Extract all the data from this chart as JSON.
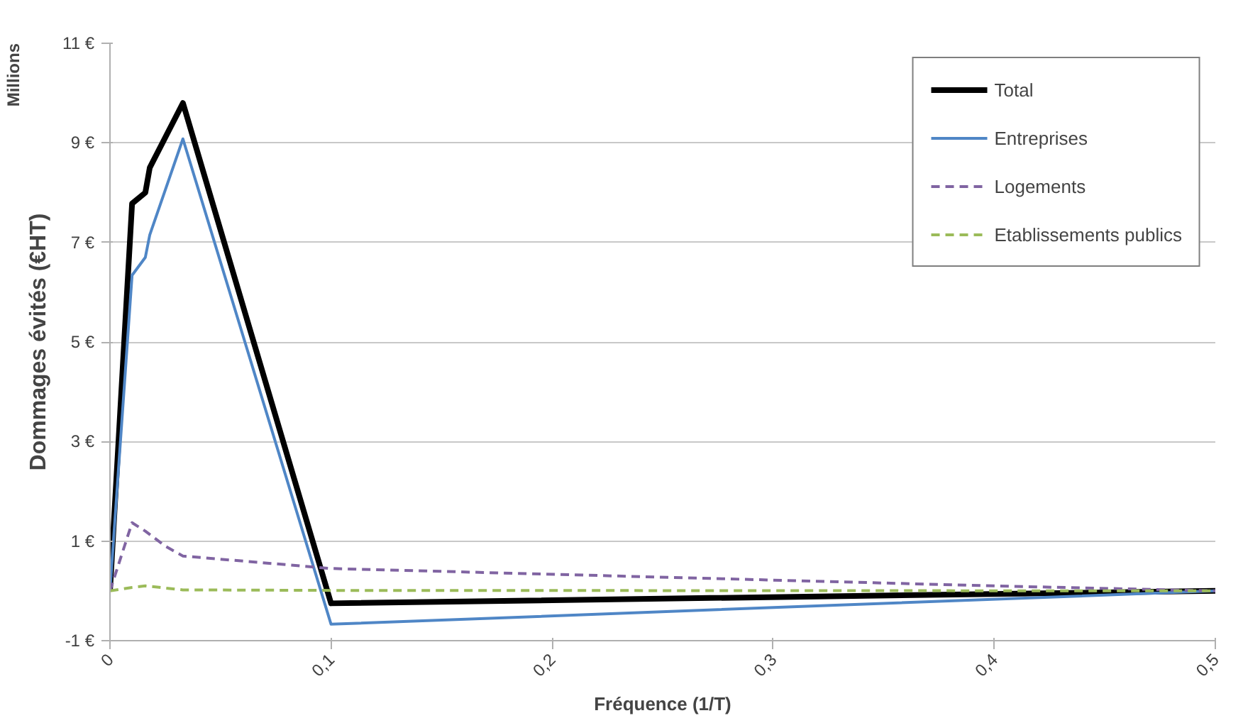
{
  "chart_data": {
    "type": "line",
    "xlabel": "Fréquence (1/T)",
    "ylabel": "Dommages évités (€HT)",
    "annotations": [
      "Millions"
    ],
    "xlim": [
      0,
      0.5
    ],
    "ylim": [
      -1,
      11
    ],
    "xticks": [
      0,
      {
        "value": 0.1,
        "label": "0,1"
      },
      {
        "value": 0.2,
        "label": "0,2"
      },
      {
        "value": 0.3,
        "label": "0,3"
      },
      {
        "value": 0.4,
        "label": "0,4"
      },
      {
        "value": 0.5,
        "label": "0,5"
      }
    ],
    "yticks": [
      {
        "value": -1,
        "label": "-1 €"
      },
      {
        "value": 1,
        "label": "1 €"
      },
      {
        "value": 3,
        "label": "3 €"
      },
      {
        "value": 5,
        "label": "5 €"
      },
      {
        "value": 7,
        "label": "7 €"
      },
      {
        "value": 9,
        "label": "9 €"
      },
      {
        "value": 11,
        "label": "11 €"
      }
    ],
    "grid": "y",
    "legend": "top right",
    "marker": "none",
    "series": [
      {
        "name": "Total",
        "color": "#000000",
        "line_style": "solid",
        "x": [
          0,
          0.01,
          0.016,
          0.018,
          0.033,
          0.1,
          0.5
        ],
        "values": [
          0,
          7.78,
          8.0,
          8.5,
          9.8,
          -0.25,
          0
        ]
      },
      {
        "name": "Entreprises",
        "color": "#4f86c6",
        "line_style": "solid",
        "x": [
          0,
          0.01,
          0.016,
          0.018,
          0.033,
          0.1,
          0.5
        ],
        "values": [
          0,
          6.34,
          6.7,
          7.15,
          9.08,
          -0.67,
          0
        ]
      },
      {
        "name": "Logements",
        "color": "#8064a2",
        "line_style": "dashed",
        "x": [
          0,
          0.01,
          0.016,
          0.025,
          0.033,
          0.1,
          0.4,
          0.5
        ],
        "values": [
          0,
          1.37,
          1.2,
          0.9,
          0.7,
          0.45,
          0.1,
          0
        ]
      },
      {
        "name": "Etablissements publics",
        "color": "#9bbb59",
        "line_style": "dashed",
        "x": [
          0,
          0.01,
          0.016,
          0.033,
          0.1,
          0.5
        ],
        "values": [
          0,
          0.07,
          0.1,
          0.02,
          0.01,
          0
        ]
      }
    ]
  }
}
